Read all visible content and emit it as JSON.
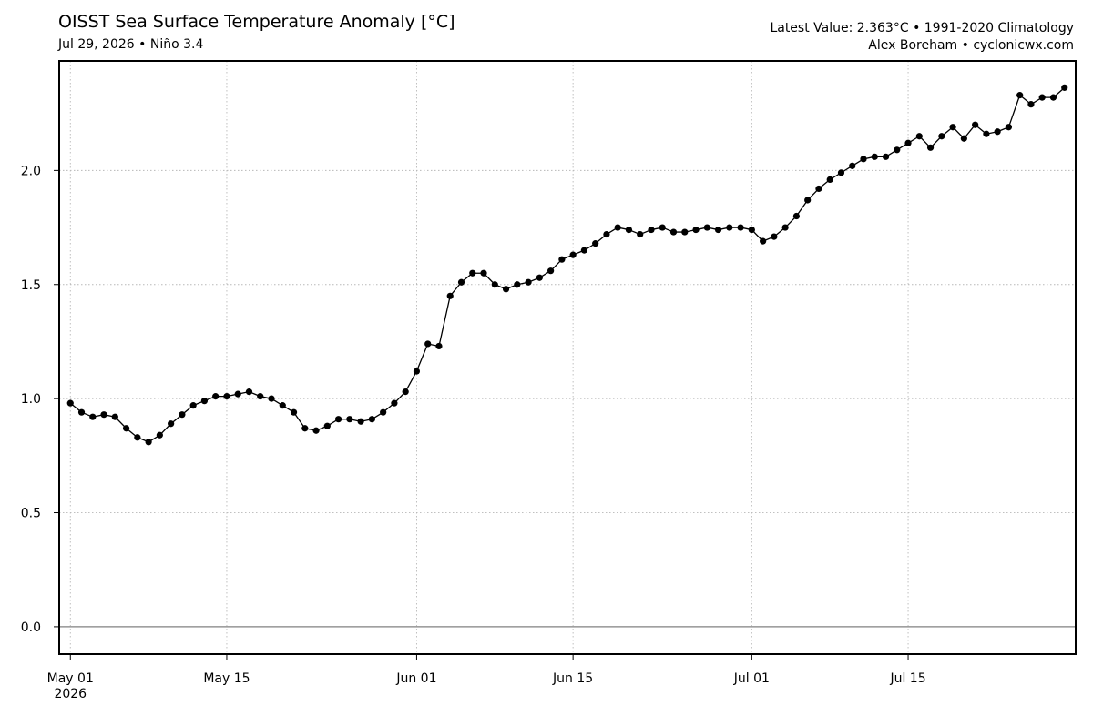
{
  "header": {
    "title": "OISST Sea Surface Temperature Anomaly [°C]",
    "subtitle": "Jul 29, 2026 • Niño 3.4",
    "info_line1": "Latest Value: 2.363°C • 1991-2020 Climatology",
    "info_line2": "Alex Boreham • cyclonicwx.com"
  },
  "chart_data": {
    "type": "line",
    "title": "OISST Sea Surface Temperature Anomaly [°C]",
    "subtitle": "Jul 29, 2026 • Niño 3.4",
    "xlabel": "",
    "ylabel": "",
    "x_start": "2026-05-01",
    "x_end": "2026-07-29",
    "xlim": [
      "2026-04-30",
      "2026-07-30"
    ],
    "ylim": [
      -0.12,
      2.48
    ],
    "grid": true,
    "zero_line": true,
    "y_ticks": [
      0.0,
      0.5,
      1.0,
      1.5,
      2.0
    ],
    "y_tick_labels": [
      "0.0",
      "0.5",
      "1.0",
      "1.5",
      "2.0"
    ],
    "x_ticks": [
      {
        "date": "2026-05-01",
        "label": "May 01",
        "sublabel": "2026"
      },
      {
        "date": "2026-05-15",
        "label": "May 15",
        "sublabel": ""
      },
      {
        "date": "2026-06-01",
        "label": "Jun 01",
        "sublabel": ""
      },
      {
        "date": "2026-06-15",
        "label": "Jun 15",
        "sublabel": ""
      },
      {
        "date": "2026-07-01",
        "label": "Jul 01",
        "sublabel": ""
      },
      {
        "date": "2026-07-15",
        "label": "Jul 15",
        "sublabel": ""
      }
    ],
    "series": [
      {
        "line_color": "#000000",
        "marker": "circle",
        "values": [
          0.98,
          0.94,
          0.92,
          0.93,
          0.92,
          0.87,
          0.83,
          0.81,
          0.84,
          0.89,
          0.93,
          0.97,
          0.99,
          1.01,
          1.01,
          1.02,
          1.03,
          1.01,
          1.0,
          0.97,
          0.94,
          0.87,
          0.86,
          0.88,
          0.91,
          0.91,
          0.9,
          0.91,
          0.94,
          0.98,
          1.03,
          1.12,
          1.24,
          1.23,
          1.45,
          1.51,
          1.55,
          1.55,
          1.5,
          1.48,
          1.5,
          1.51,
          1.53,
          1.56,
          1.61,
          1.63,
          1.65,
          1.68,
          1.72,
          1.75,
          1.74,
          1.72,
          1.74,
          1.75,
          1.73,
          1.73,
          1.74,
          1.75,
          1.74,
          1.75,
          1.75,
          1.74,
          1.69,
          1.71,
          1.75,
          1.8,
          1.87,
          1.92,
          1.96,
          1.99,
          2.02,
          2.05,
          2.06,
          2.06,
          2.09,
          2.12,
          2.15,
          2.1,
          2.15,
          2.19,
          2.14,
          2.2,
          2.16,
          2.17,
          2.19,
          2.33,
          2.29,
          2.32,
          2.32,
          2.363
        ]
      }
    ]
  }
}
